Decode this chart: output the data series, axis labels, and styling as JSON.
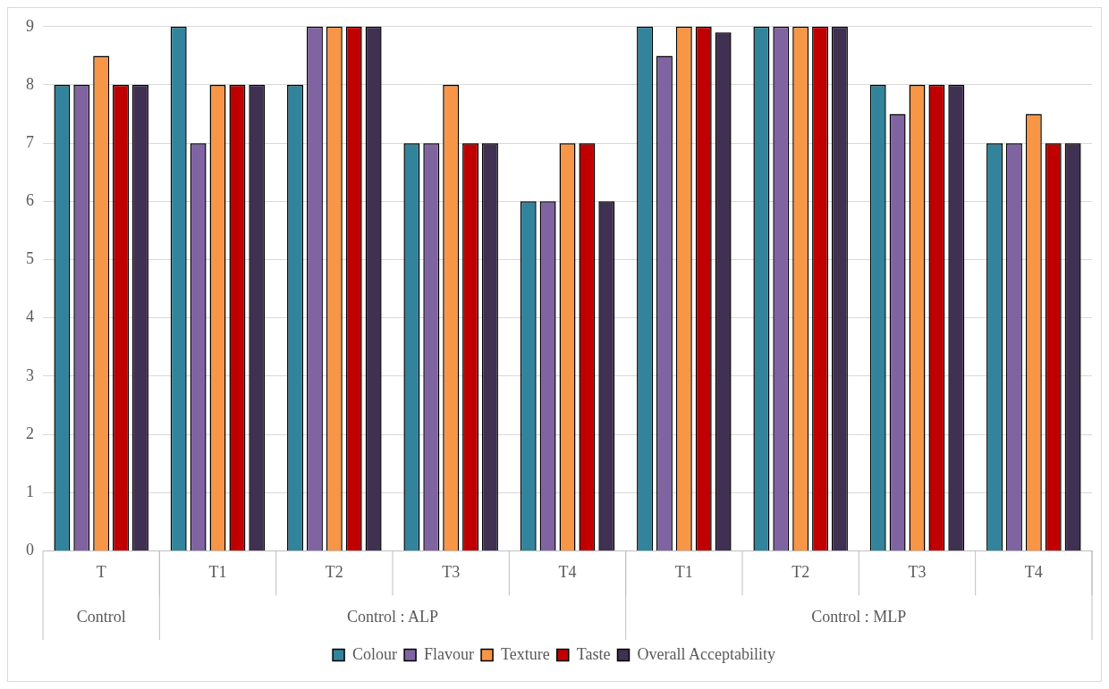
{
  "chart_data": {
    "type": "bar",
    "categories": [
      "T",
      "T1",
      "T2",
      "T3",
      "T4",
      "T1",
      "T2",
      "T3",
      "T4"
    ],
    "series": [
      {
        "name": "Colour",
        "color": "#31849b",
        "values": [
          8,
          9,
          8,
          7,
          6,
          9,
          9,
          8,
          7
        ]
      },
      {
        "name": "Flavour",
        "color": "#8064a2",
        "values": [
          8,
          7,
          9,
          7,
          6,
          8.5,
          9,
          7.5,
          7
        ]
      },
      {
        "name": "Texture",
        "color": "#f79646",
        "values": [
          8.5,
          8,
          9,
          8,
          7,
          9,
          9,
          8,
          7.5
        ]
      },
      {
        "name": "Taste",
        "color": "#c00000",
        "values": [
          8,
          8,
          9,
          7,
          7,
          9,
          9,
          8,
          7
        ]
      },
      {
        "name": "Overall Acceptability",
        "color": "#403152",
        "values": [
          8,
          8,
          9,
          7,
          6,
          8.9,
          9,
          8,
          7
        ]
      }
    ],
    "annotations": [
      "Control",
      "Control : ALP",
      "Control : MLP"
    ],
    "ylim": [
      0,
      9
    ],
    "yticks": [
      0,
      1,
      2,
      3,
      4,
      5,
      6,
      7,
      8,
      9
    ],
    "grid": "y",
    "legend": "bottom"
  }
}
